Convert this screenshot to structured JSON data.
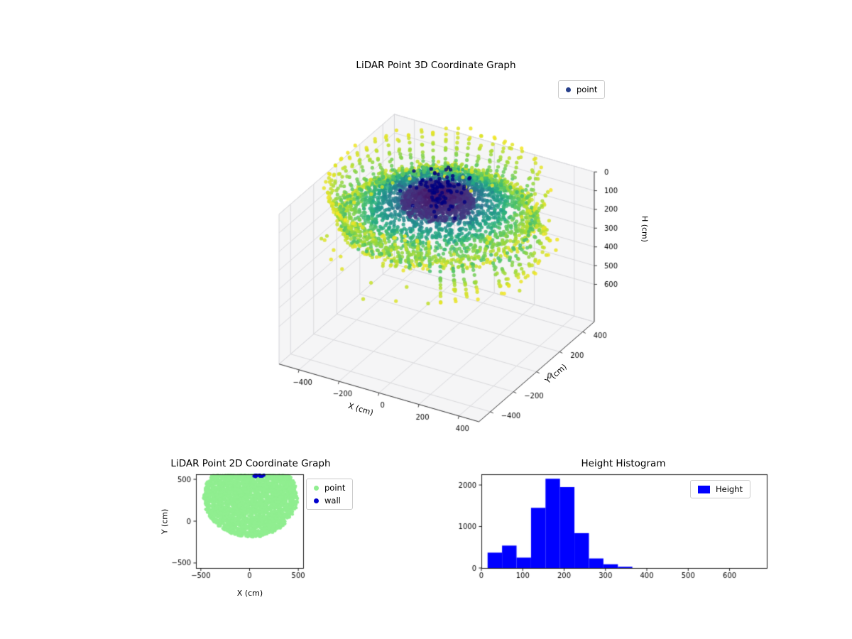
{
  "page": {
    "background": "#ffffff"
  },
  "chart_data": [
    {
      "id": "lidar-3d",
      "type": "scatter3d",
      "title": "LiDAR Point 3D Coordinate Graph",
      "xlabel": "X (cm)",
      "ylabel": "Y (cm)",
      "zlabel": "H (cm)",
      "xlim": [
        -500,
        500
      ],
      "ylim": [
        -500,
        500
      ],
      "zlim": [
        0,
        800
      ],
      "xticks": [
        -400,
        -200,
        0,
        200,
        400
      ],
      "yticks": [
        -400,
        -200,
        0,
        200,
        400
      ],
      "zticks": [
        0,
        100,
        200,
        300,
        400,
        500,
        600
      ],
      "z_axis_inverted": true,
      "grid": true,
      "view": {
        "elev": 30,
        "azim": -60
      },
      "colormap": "viridis",
      "legend": {
        "position": "upper right",
        "entries": [
          {
            "label": "point",
            "color": "#27408b",
            "marker": "dot"
          }
        ]
      },
      "point_cloud": {
        "summary": "Dense disc-shaped LiDAR sweep colored by radius with viridis colormap: dark purple core near (x=-40,y=80,H~55), green rim sagging to H~190-330, radial green/yellow scan streaks rising above the rim toward H~0, and a small dark navy wall cluster near the center top.",
        "disc": {
          "center_x": -40,
          "center_y": 80,
          "radius": 440,
          "h_center": 55,
          "h_rim": 190,
          "count": 2600
        },
        "core": {
          "radius_frac": 0.36,
          "count": 900
        },
        "rim_rays": {
          "ray_count": 56,
          "points_per_ray": 12,
          "h_top": 15,
          "h_sag": 330
        },
        "outliers": {
          "count": 40,
          "h_min": 240,
          "h_max": 380
        },
        "wall_cluster": {
          "center_x": -60,
          "center_y": 130,
          "h_center": 60,
          "spread": 55,
          "count": 90,
          "color": "#000080"
        }
      }
    },
    {
      "id": "lidar-2d",
      "type": "scatter",
      "title": "LiDAR Point 2D Coordinate Graph",
      "xlabel": "X (cm)",
      "ylabel": "Y (cm)",
      "xlim": [
        -550,
        550
      ],
      "ylim": [
        -560,
        560
      ],
      "xticks": [
        -500,
        0,
        500
      ],
      "yticks": [
        -500,
        0,
        500
      ],
      "legend": {
        "position": "outside right",
        "entries": [
          {
            "label": "point",
            "color": "#90ee90",
            "marker": "dot"
          },
          {
            "label": "wall",
            "color": "#0000cd",
            "marker": "dot"
          }
        ]
      },
      "blob": {
        "center_x": 10,
        "center_y": 290,
        "radius": 480,
        "clip_y_max": 545,
        "count": 3800,
        "color": "#90ee90"
      },
      "wall_points": {
        "x_min": 40,
        "x_max": 150,
        "y_min": 532,
        "y_max": 552,
        "count": 25,
        "color": "#0000cd"
      }
    },
    {
      "id": "height-histogram",
      "type": "bar",
      "title": "Height Histogram",
      "xlim": [
        0,
        690
      ],
      "ylim": [
        0,
        2258
      ],
      "xticks": [
        0,
        100,
        200,
        300,
        400,
        500,
        600
      ],
      "yticks": [
        0,
        1000,
        2000
      ],
      "bin_edges": [
        15,
        50,
        85,
        120,
        155,
        190,
        225,
        260,
        295,
        330,
        365
      ],
      "counts": [
        370,
        540,
        250,
        1450,
        2150,
        1950,
        840,
        230,
        90,
        30
      ],
      "bar_color": "#0000ff",
      "legend": {
        "position": "upper right",
        "entries": [
          {
            "label": "Height",
            "color": "#0000ff",
            "marker": "patch"
          }
        ]
      }
    }
  ]
}
